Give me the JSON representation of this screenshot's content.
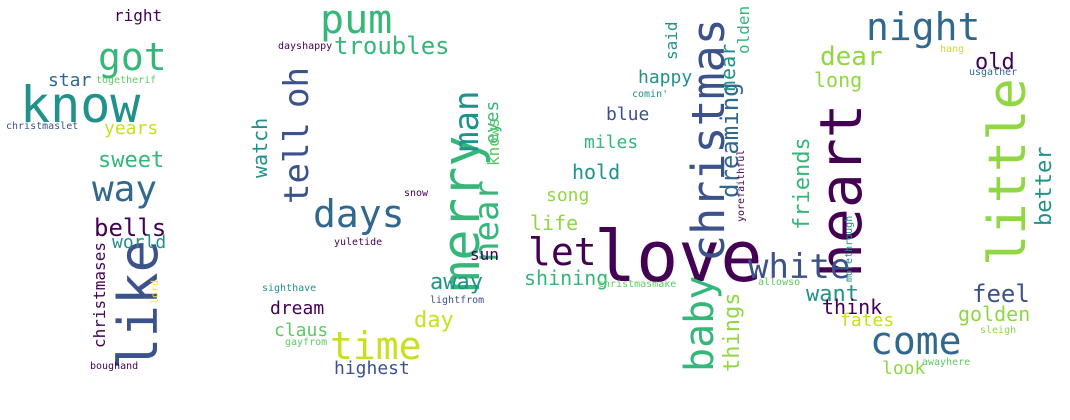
{
  "palette": {
    "dark_purple": "#440154",
    "indigo": "#3b528b",
    "blue": "#31688e",
    "teal": "#21918c",
    "green": "#35b779",
    "light_green": "#5ec962",
    "lime": "#90d743",
    "yellow": "#c8e020",
    "bright_yellow": "#fde725"
  },
  "words": [
    {
      "text": "love",
      "color": "dark_purple",
      "vertical": false
    },
    {
      "text": "heart",
      "color": "dark_purple",
      "vertical": true
    },
    {
      "text": "christmas",
      "color": "indigo",
      "vertical": true
    },
    {
      "text": "little",
      "color": "lime",
      "vertical": true
    },
    {
      "text": "know",
      "color": "teal",
      "vertical": false
    },
    {
      "text": "like",
      "color": "indigo",
      "vertical": true
    },
    {
      "text": "merry",
      "color": "green",
      "vertical": true
    },
    {
      "text": "white",
      "color": "indigo",
      "vertical": false
    },
    {
      "text": "come",
      "color": "blue",
      "vertical": false
    },
    {
      "text": "baby",
      "color": "green",
      "vertical": true
    },
    {
      "text": "days",
      "color": "blue",
      "vertical": false
    },
    {
      "text": "time",
      "color": "yellow",
      "vertical": false
    },
    {
      "text": "pum",
      "color": "green",
      "vertical": false
    },
    {
      "text": "night",
      "color": "blue",
      "vertical": false
    },
    {
      "text": "tell",
      "color": "indigo",
      "vertical": true
    },
    {
      "text": "oh",
      "color": "indigo",
      "vertical": true
    },
    {
      "text": "got",
      "color": "green",
      "vertical": false
    },
    {
      "text": "way",
      "color": "blue",
      "vertical": false
    },
    {
      "text": "let",
      "color": "dark_purple",
      "vertical": false
    },
    {
      "text": "near",
      "color": "green",
      "vertical": true
    },
    {
      "text": "man",
      "color": "teal",
      "vertical": true
    },
    {
      "text": "troubles",
      "color": "green",
      "vertical": false
    },
    {
      "text": "dreaming",
      "color": "blue",
      "vertical": true
    },
    {
      "text": "near",
      "color": "teal",
      "vertical": true
    },
    {
      "text": "dear",
      "color": "lime",
      "vertical": false
    },
    {
      "text": "old",
      "color": "dark_purple",
      "vertical": false
    },
    {
      "text": "long",
      "color": "lime",
      "vertical": false
    },
    {
      "text": "better",
      "color": "teal",
      "vertical": true
    },
    {
      "text": "right",
      "color": "dark_purple",
      "vertical": false
    },
    {
      "text": "star",
      "color": "blue",
      "vertical": false
    },
    {
      "text": "togetherif",
      "color": "light_green",
      "vertical": false
    },
    {
      "text": "christmaslet",
      "color": "indigo",
      "vertical": false
    },
    {
      "text": "years",
      "color": "yellow",
      "vertical": false
    },
    {
      "text": "sweet",
      "color": "green",
      "vertical": false
    },
    {
      "text": "bells",
      "color": "dark_purple",
      "vertical": false
    },
    {
      "text": "world",
      "color": "teal",
      "vertical": false
    },
    {
      "text": "christmases",
      "color": "dark_purple",
      "vertical": true
    },
    {
      "text": "lord",
      "color": "bright_yellow",
      "vertical": true
    },
    {
      "text": "boughand",
      "color": "dark_purple",
      "vertical": false
    },
    {
      "text": "dayshappy",
      "color": "dark_purple",
      "vertical": false
    },
    {
      "text": "watch",
      "color": "teal",
      "vertical": true
    },
    {
      "text": "eyes",
      "color": "green",
      "vertical": true
    },
    {
      "text": "knows",
      "color": "light_green",
      "vertical": true
    },
    {
      "text": "snow",
      "color": "dark_purple",
      "vertical": false
    },
    {
      "text": "yuletide",
      "color": "dark_purple",
      "vertical": false
    },
    {
      "text": "sun",
      "color": "dark_purple",
      "vertical": false
    },
    {
      "text": "away",
      "color": "teal",
      "vertical": false
    },
    {
      "text": "day",
      "color": "yellow",
      "vertical": false
    },
    {
      "text": "sighthave",
      "color": "teal",
      "vertical": false
    },
    {
      "text": "dream",
      "color": "dark_purple",
      "vertical": false
    },
    {
      "text": "claus",
      "color": "light_green",
      "vertical": false
    },
    {
      "text": "gayfrom",
      "color": "light_green",
      "vertical": false
    },
    {
      "text": "highest",
      "color": "indigo",
      "vertical": false
    },
    {
      "text": "lightfrom",
      "color": "indigo",
      "vertical": false
    },
    {
      "text": "said",
      "color": "teal",
      "vertical": true
    },
    {
      "text": "olden",
      "color": "green",
      "vertical": true
    },
    {
      "text": "happy",
      "color": "teal",
      "vertical": false
    },
    {
      "text": "comin'",
      "color": "teal",
      "vertical": false
    },
    {
      "text": "blue",
      "color": "indigo",
      "vertical": false
    },
    {
      "text": "miles",
      "color": "green",
      "vertical": false
    },
    {
      "text": "hold",
      "color": "teal",
      "vertical": false
    },
    {
      "text": "song",
      "color": "lime",
      "vertical": false
    },
    {
      "text": "life",
      "color": "lime",
      "vertical": false
    },
    {
      "text": "shining",
      "color": "green",
      "vertical": false
    },
    {
      "text": "christmasmake",
      "color": "light_green",
      "vertical": false
    },
    {
      "text": "things",
      "color": "lime",
      "vertical": true
    },
    {
      "text": "yorefaithful",
      "color": "dark_purple",
      "vertical": true
    },
    {
      "text": "friends",
      "color": "green",
      "vertical": true
    },
    {
      "text": "morethrough",
      "color": "teal",
      "vertical": true
    },
    {
      "text": "want",
      "color": "teal",
      "vertical": false
    },
    {
      "text": "think",
      "color": "dark_purple",
      "vertical": false
    },
    {
      "text": "fates",
      "color": "yellow",
      "vertical": false
    },
    {
      "text": "allowso",
      "color": "light_green",
      "vertical": false
    },
    {
      "text": "look",
      "color": "lime",
      "vertical": false
    },
    {
      "text": "awayhere",
      "color": "light_green",
      "vertical": false
    },
    {
      "text": "hang",
      "color": "yellow",
      "vertical": false
    },
    {
      "text": "usgather",
      "color": "blue",
      "vertical": false
    },
    {
      "text": "feel",
      "color": "indigo",
      "vertical": false
    },
    {
      "text": "golden",
      "color": "lime",
      "vertical": false
    },
    {
      "text": "sleigh",
      "color": "lime",
      "vertical": false
    }
  ]
}
